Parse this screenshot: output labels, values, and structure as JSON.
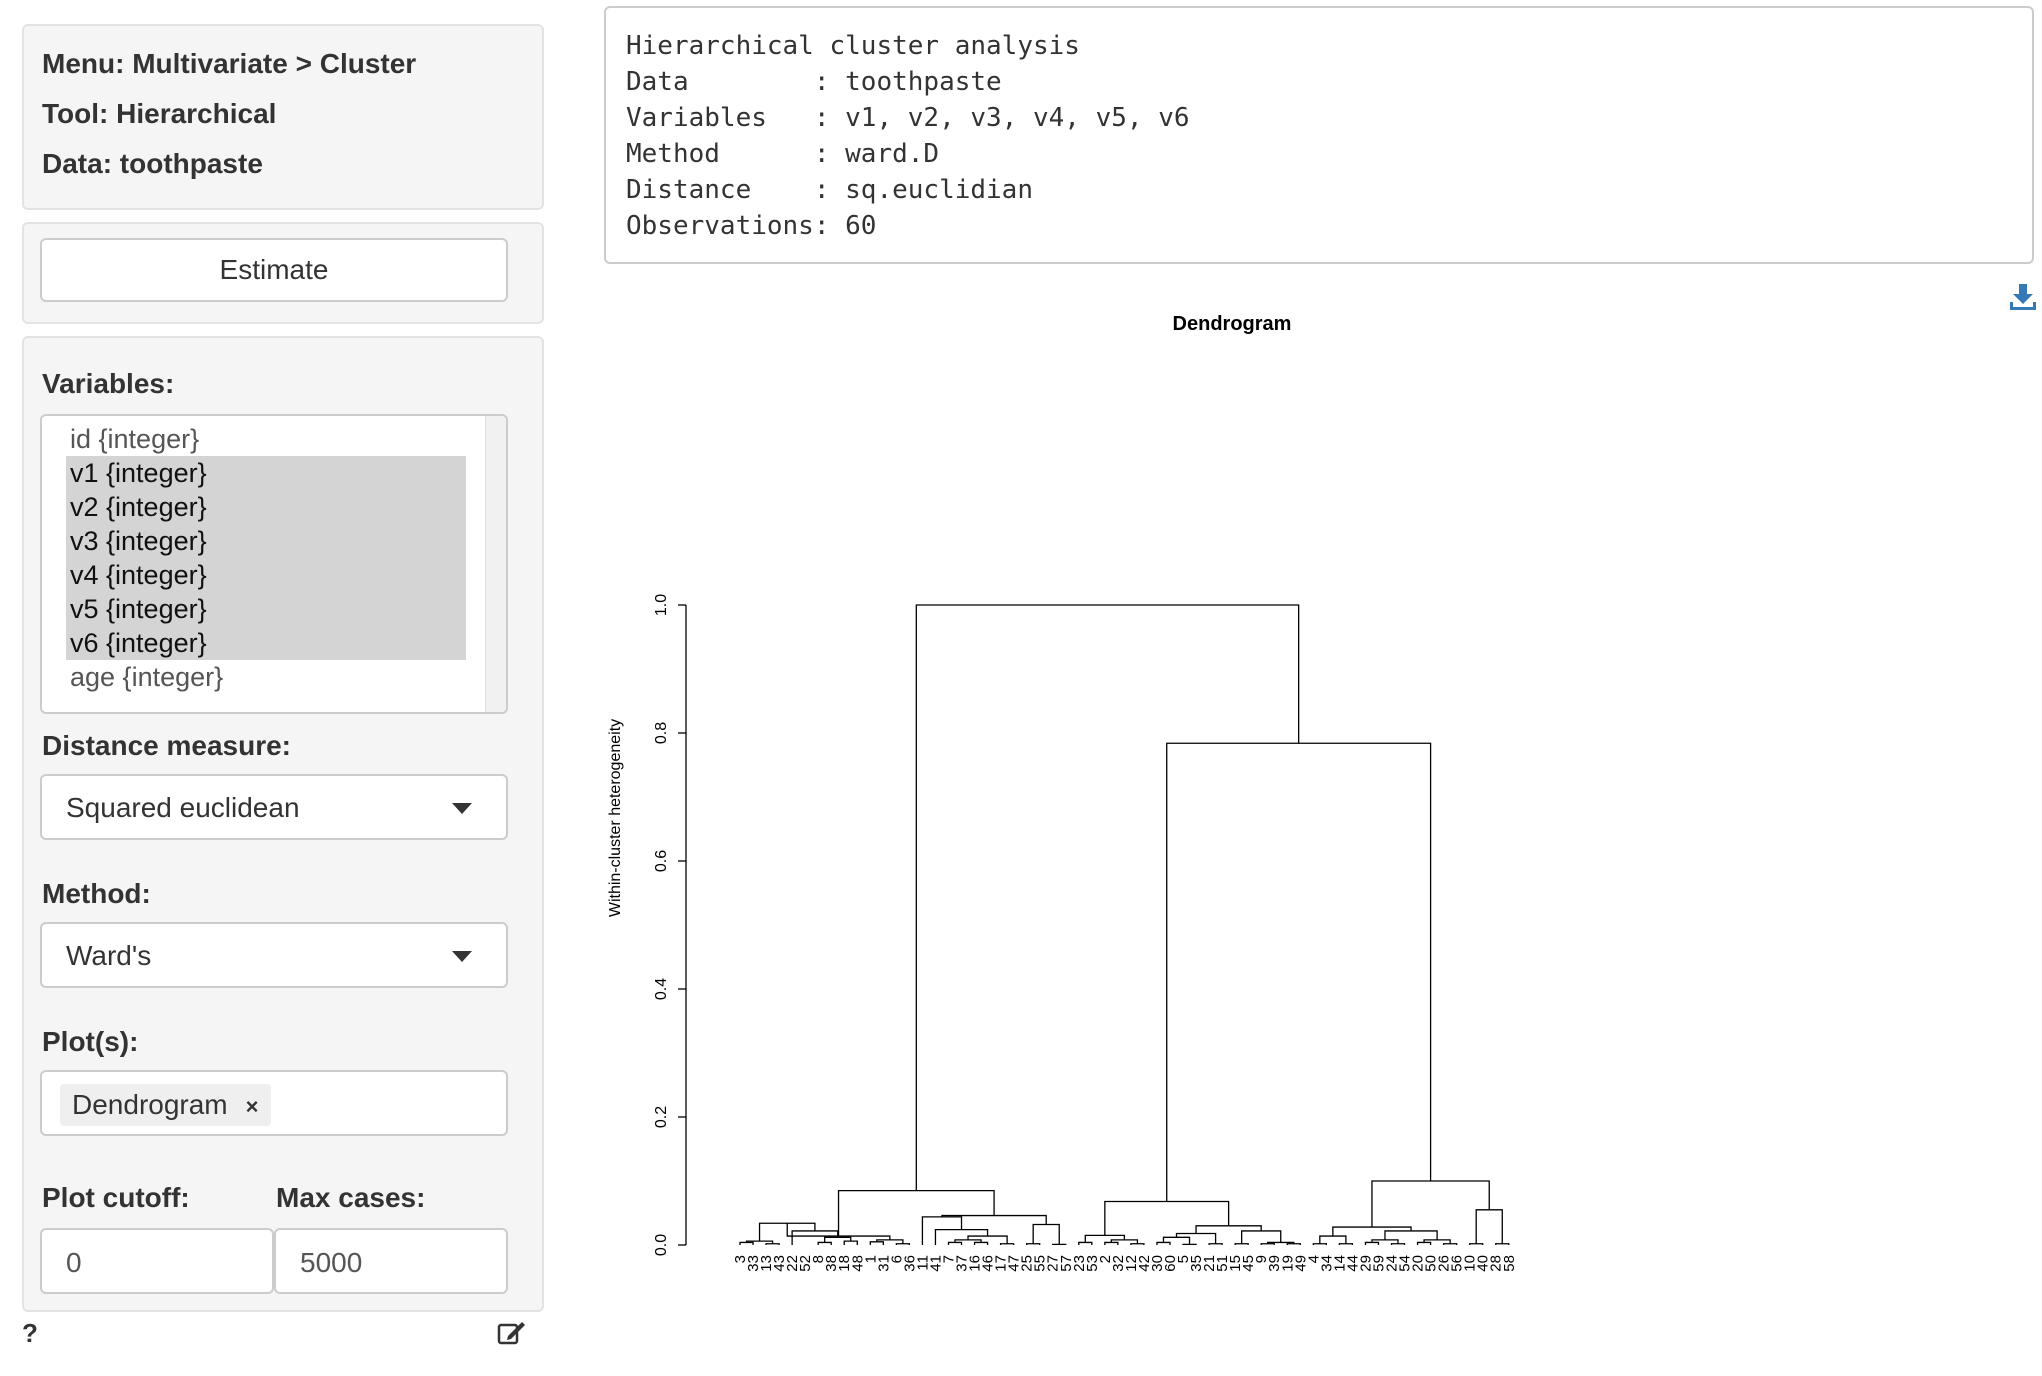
{
  "info": {
    "menu": "Menu: Multivariate > Cluster",
    "tool": "Tool: Hierarchical",
    "data": "Data: toothpaste"
  },
  "estimate_label": "Estimate",
  "variables": {
    "label": "Variables:",
    "options": [
      {
        "text": "id {integer}",
        "selected": false
      },
      {
        "text": "v1 {integer}",
        "selected": true
      },
      {
        "text": "v2 {integer}",
        "selected": true
      },
      {
        "text": "v3 {integer}",
        "selected": true
      },
      {
        "text": "v4 {integer}",
        "selected": true
      },
      {
        "text": "v5 {integer}",
        "selected": true
      },
      {
        "text": "v6 {integer}",
        "selected": true
      },
      {
        "text": "age {integer}",
        "selected": false
      }
    ]
  },
  "distance": {
    "label": "Distance measure:",
    "value": "Squared euclidean"
  },
  "method": {
    "label": "Method:",
    "value": "Ward's"
  },
  "plots": {
    "label": "Plot(s):",
    "tag": "Dendrogram",
    "remove": "×"
  },
  "cutoff": {
    "label": "Plot cutoff:",
    "value": "0"
  },
  "maxcases": {
    "label": "Max cases:",
    "value": "5000"
  },
  "help_label": "?",
  "output": {
    "lines": [
      "Hierarchical cluster analysis",
      "Data        : toothpaste",
      "Variables   : v1, v2, v3, v4, v5, v6",
      "Method      : ward.D",
      "Distance    : sq.euclidian",
      "Observations: 60"
    ]
  },
  "chart_data": {
    "type": "dendrogram",
    "title": "Dendrogram",
    "ylabel": "Within-cluster heterogeneity",
    "ylim": [
      0,
      1
    ],
    "yticks": [
      "0.0",
      "0.2",
      "0.4",
      "0.6",
      "0.8",
      "1.0"
    ],
    "leaves": [
      "3",
      "33",
      "13",
      "43",
      "22",
      "52",
      "8",
      "38",
      "18",
      "48",
      "1",
      "31",
      "6",
      "36",
      "11",
      "41",
      "7",
      "37",
      "16",
      "46",
      "17",
      "47",
      "25",
      "55",
      "27",
      "57",
      "23",
      "53",
      "2",
      "32",
      "12",
      "42",
      "30",
      "60",
      "5",
      "35",
      "21",
      "51",
      "15",
      "45",
      "9",
      "39",
      "19",
      "49",
      "4",
      "34",
      "14",
      "44",
      "29",
      "59",
      "24",
      "54",
      "20",
      "50",
      "26",
      "56",
      "10",
      "40",
      "28",
      "58"
    ],
    "merges": [
      [
        0,
        1,
        0.004
      ],
      [
        2,
        3,
        0.002
      ],
      [
        60,
        61,
        0.006
      ],
      [
        6,
        7,
        0.004
      ],
      [
        8,
        9,
        0.006
      ],
      [
        63,
        64,
        0.012
      ],
      [
        4,
        65,
        0.022
      ],
      [
        62,
        66,
        0.034
      ],
      [
        10,
        11,
        0.005
      ],
      [
        12,
        13,
        0.002
      ],
      [
        68,
        69,
        0.008
      ],
      [
        67,
        70,
        0.014
      ],
      [
        16,
        17,
        0.004
      ],
      [
        18,
        19,
        0.004
      ],
      [
        72,
        73,
        0.008
      ],
      [
        20,
        21,
        0.002
      ],
      [
        74,
        75,
        0.014
      ],
      [
        15,
        76,
        0.024
      ],
      [
        14,
        77,
        0.044
      ],
      [
        22,
        23,
        0.002
      ],
      [
        24,
        25,
        0.001
      ],
      [
        79,
        80,
        0.032
      ],
      [
        78,
        81,
        0.046
      ],
      [
        71,
        82,
        0.085
      ],
      [
        28,
        29,
        0.004
      ],
      [
        30,
        31,
        0.002
      ],
      [
        84,
        85,
        0.008
      ],
      [
        26,
        27,
        0.004
      ],
      [
        87,
        86,
        0.015
      ],
      [
        32,
        33,
        0.004
      ],
      [
        34,
        35,
        0.001
      ],
      [
        89,
        90,
        0.012
      ],
      [
        36,
        37,
        0.002
      ],
      [
        91,
        92,
        0.018
      ],
      [
        40,
        41,
        0.002
      ],
      [
        42,
        43,
        0.002
      ],
      [
        94,
        95,
        0.004
      ],
      [
        38,
        39,
        0.002
      ],
      [
        97,
        96,
        0.022
      ],
      [
        93,
        98,
        0.03
      ],
      [
        88,
        99,
        0.068
      ],
      [
        44,
        45,
        0.002
      ],
      [
        46,
        47,
        0.002
      ],
      [
        101,
        102,
        0.014
      ],
      [
        48,
        49,
        0.004
      ],
      [
        50,
        51,
        0.002
      ],
      [
        104,
        105,
        0.008
      ],
      [
        52,
        53,
        0.004
      ],
      [
        54,
        55,
        0.002
      ],
      [
        107,
        108,
        0.008
      ],
      [
        106,
        109,
        0.022
      ],
      [
        103,
        110,
        0.028
      ],
      [
        56,
        57,
        0.002
      ],
      [
        58,
        59,
        0.002
      ],
      [
        112,
        113,
        0.055
      ],
      [
        111,
        114,
        0.1
      ],
      [
        100,
        115,
        0.784
      ],
      [
        83,
        116,
        1.0
      ]
    ]
  }
}
